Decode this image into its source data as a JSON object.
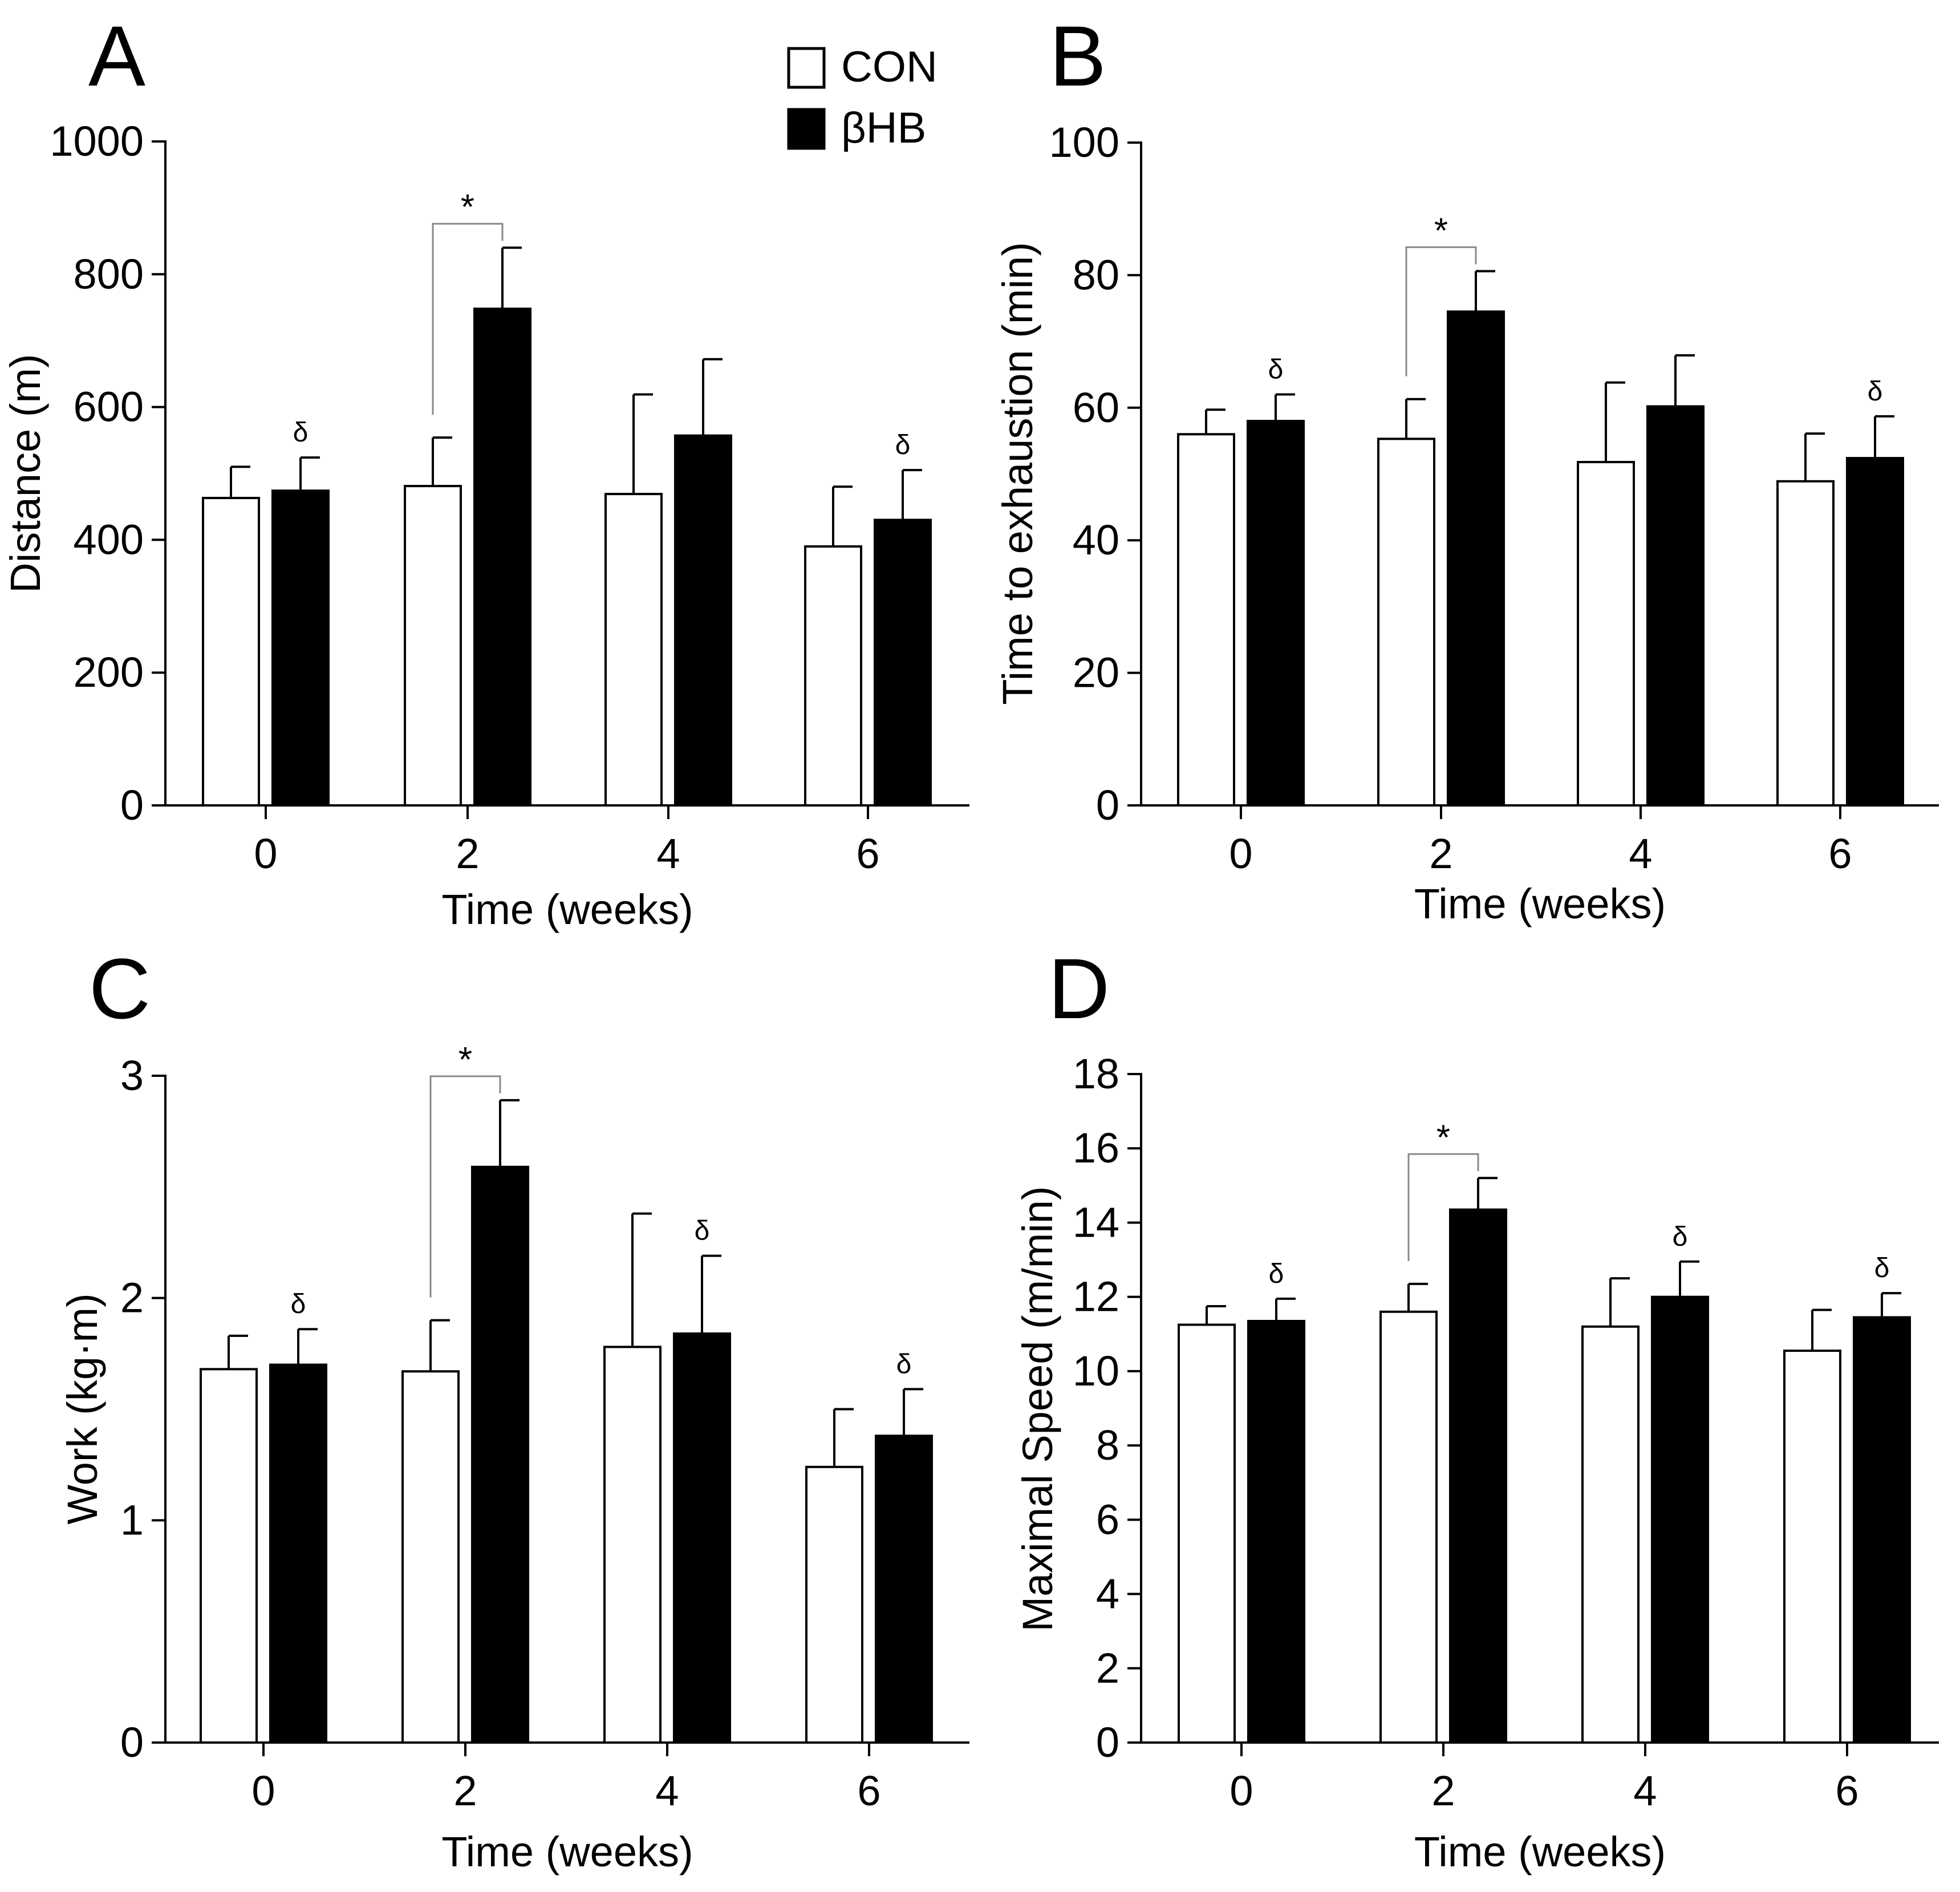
{
  "chart_data": [
    {
      "type": "bar",
      "panel_label": "A",
      "ylabel": "Distance (m)",
      "xlabel": "Time (weeks)",
      "categories": [
        "0",
        "2",
        "4",
        "6"
      ],
      "ylim": [
        0,
        1000
      ],
      "yticks": [
        0,
        200,
        400,
        600,
        800,
        1000
      ],
      "series": [
        {
          "name": "CON",
          "color": "#ffffff",
          "values": [
            463,
            481,
            469,
            390
          ],
          "errors": [
            47,
            73,
            150,
            90
          ]
        },
        {
          "name": "βHB",
          "color": "#000000",
          "values": [
            474,
            748,
            557,
            430
          ],
          "errors": [
            50,
            92,
            115,
            75
          ]
        }
      ],
      "significance": [
        {
          "category": "2",
          "label": "*"
        }
      ],
      "annotations": [
        {
          "category": "0",
          "series": "βHB",
          "label": "δ"
        },
        {
          "category": "6",
          "series": "βHB",
          "label": "δ"
        }
      ]
    },
    {
      "type": "bar",
      "panel_label": "B",
      "ylabel": "Time to exhaustion (min)",
      "xlabel": "Time (weeks)",
      "categories": [
        "0",
        "2",
        "4",
        "6"
      ],
      "ylim": [
        0,
        100
      ],
      "yticks": [
        0,
        20,
        40,
        60,
        80,
        100
      ],
      "series": [
        {
          "name": "CON",
          "color": "#ffffff",
          "values": [
            56,
            55.3,
            51.8,
            48.9
          ],
          "errors": [
            3.7,
            6,
            12,
            7.2
          ]
        },
        {
          "name": "βHB",
          "color": "#000000",
          "values": [
            58,
            74.5,
            60.2,
            52.4
          ],
          "errors": [
            4,
            6.1,
            7.7,
            6.3
          ]
        }
      ],
      "significance": [
        {
          "category": "2",
          "label": "*"
        }
      ],
      "annotations": [
        {
          "category": "0",
          "series": "βHB",
          "label": "δ"
        },
        {
          "category": "6",
          "series": "βHB",
          "label": "δ"
        }
      ]
    },
    {
      "type": "bar",
      "panel_label": "C",
      "ylabel": "Work (kg·m)",
      "xlabel": "Time (weeks)",
      "categories": [
        "0",
        "2",
        "4",
        "6"
      ],
      "ylim": [
        0,
        3
      ],
      "yticks": [
        0,
        1,
        2,
        3
      ],
      "series": [
        {
          "name": "CON",
          "color": "#ffffff",
          "values": [
            1.68,
            1.67,
            1.78,
            1.24
          ],
          "errors": [
            0.15,
            0.23,
            0.6,
            0.26
          ]
        },
        {
          "name": "βHB",
          "color": "#000000",
          "values": [
            1.7,
            2.59,
            1.84,
            1.38
          ],
          "errors": [
            0.16,
            0.3,
            0.35,
            0.21
          ]
        }
      ],
      "significance": [
        {
          "category": "2",
          "label": "*"
        }
      ],
      "annotations": [
        {
          "category": "0",
          "series": "βHB",
          "label": "δ"
        },
        {
          "category": "4",
          "series": "βHB",
          "label": "δ"
        },
        {
          "category": "6",
          "series": "βHB",
          "label": "δ"
        }
      ]
    },
    {
      "type": "bar",
      "panel_label": "D",
      "ylabel": "Maximal Speed (m/min)",
      "xlabel": "Time (weeks)",
      "categories": [
        "0",
        "2",
        "4",
        "6"
      ],
      "ylim": [
        0,
        18
      ],
      "yticks": [
        0,
        2,
        4,
        6,
        8,
        10,
        12,
        14,
        16,
        18
      ],
      "series": [
        {
          "name": "CON",
          "color": "#ffffff",
          "values": [
            11.25,
            11.6,
            11.2,
            10.55
          ],
          "errors": [
            0.5,
            0.75,
            1.3,
            1.1
          ]
        },
        {
          "name": "βHB",
          "color": "#000000",
          "values": [
            11.35,
            14.35,
            12.0,
            11.45
          ],
          "errors": [
            0.6,
            0.85,
            0.95,
            0.65
          ]
        }
      ],
      "significance": [
        {
          "category": "2",
          "label": "*"
        }
      ],
      "annotations": [
        {
          "category": "0",
          "series": "βHB",
          "label": "δ"
        },
        {
          "category": "4",
          "series": "βHB",
          "label": "δ"
        },
        {
          "category": "6",
          "series": "βHB",
          "label": "δ"
        }
      ]
    }
  ],
  "legend": {
    "items": [
      {
        "label": "CON",
        "color": "#ffffff"
      },
      {
        "label": "βHB",
        "color": "#000000"
      }
    ]
  }
}
